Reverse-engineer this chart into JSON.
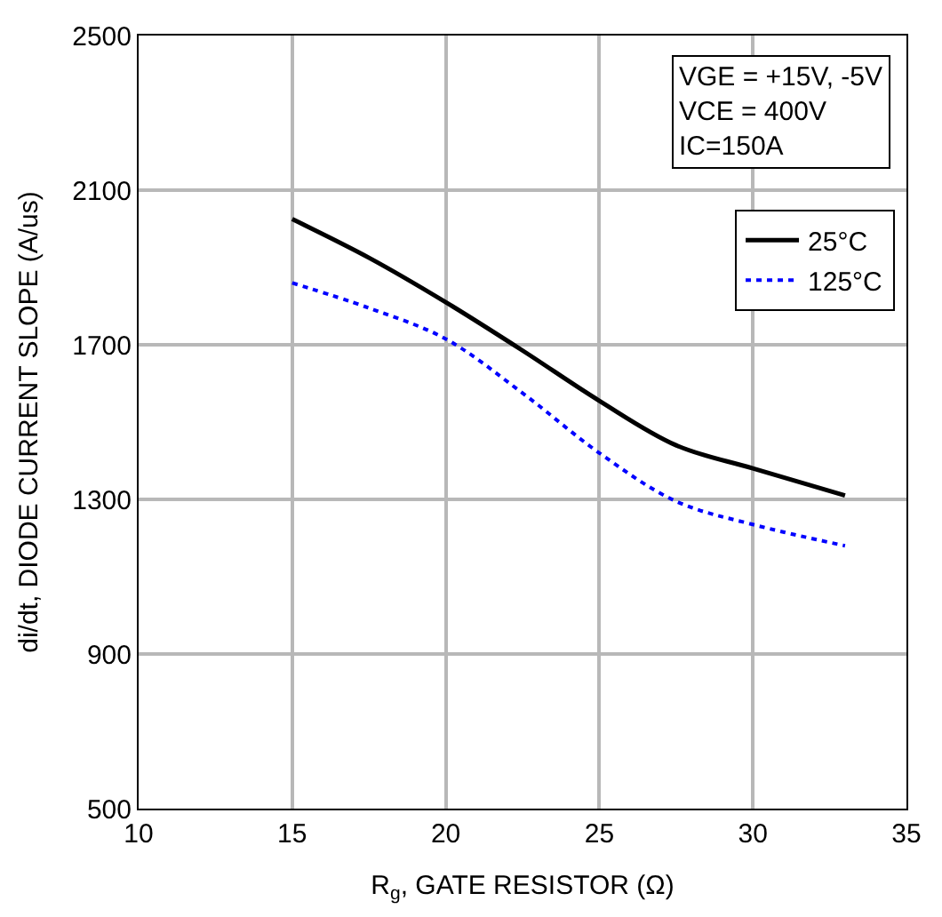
{
  "chart_data": {
    "type": "line",
    "xlabel": "R$_{g}$, GATE RESISTOR (Ω)",
    "ylabel": "di/dt, DIODE CURRENT SLOPE (A/us)",
    "x": [
      15,
      17.5,
      20,
      22.5,
      25,
      27.5,
      30,
      33
    ],
    "series": [
      {
        "name": "25°C",
        "color": "#000000",
        "line_style": "solid",
        "values": [
          2025,
          1925,
          1810,
          1685,
          1555,
          1440,
          1380,
          1310
        ]
      },
      {
        "name": "125°C",
        "color": "#0000ff",
        "line_style": "dotted",
        "values": [
          1860,
          1795,
          1715,
          1575,
          1420,
          1295,
          1235,
          1180
        ]
      }
    ],
    "annotations": [
      "VGE = +15V, -5V\nVCE = 400V\nIC=150A"
    ],
    "xlim": [
      10,
      35
    ],
    "xticks": [
      10,
      15,
      20,
      25,
      30,
      35
    ],
    "ylim": [
      500,
      2500
    ],
    "yticks": [
      500,
      900,
      1300,
      1700,
      2100,
      2500
    ],
    "grid": true,
    "legend": "top right",
    "marker": "none"
  }
}
